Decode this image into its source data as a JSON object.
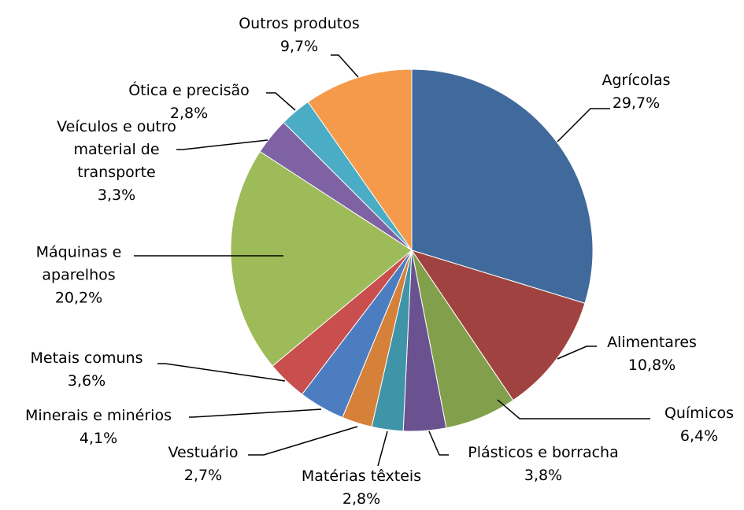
{
  "chart_data": {
    "type": "pie",
    "categories": [
      "Agrícolas",
      "Alimentares",
      "Químicos",
      "Plásticos e borracha",
      "Matérias têxteis",
      "Vestuário",
      "Minerais e minérios",
      "Metais comuns",
      "Máquinas e aparelhos",
      "Veículos e outro material de transporte",
      "Ótica e precisão",
      "Outros produtos"
    ],
    "values": [
      29.7,
      10.8,
      6.4,
      3.8,
      2.8,
      2.7,
      4.1,
      3.6,
      20.2,
      3.3,
      2.8,
      9.7
    ],
    "value_labels": [
      "29,7%",
      "10,8%",
      "6,4%",
      "3,8%",
      "2,8%",
      "2,7%",
      "4,1%",
      "3,6%",
      "20,2%",
      "3,3%",
      "2,8%",
      "9,7%"
    ],
    "colors": [
      "#416a9c",
      "#a04340",
      "#82a04b",
      "#6a5190",
      "#3f94a8",
      "#d5813a",
      "#4c7dc1",
      "#c84f4d",
      "#9dbb59",
      "#7e62a3",
      "#4bacc6",
      "#f59a4a"
    ]
  }
}
